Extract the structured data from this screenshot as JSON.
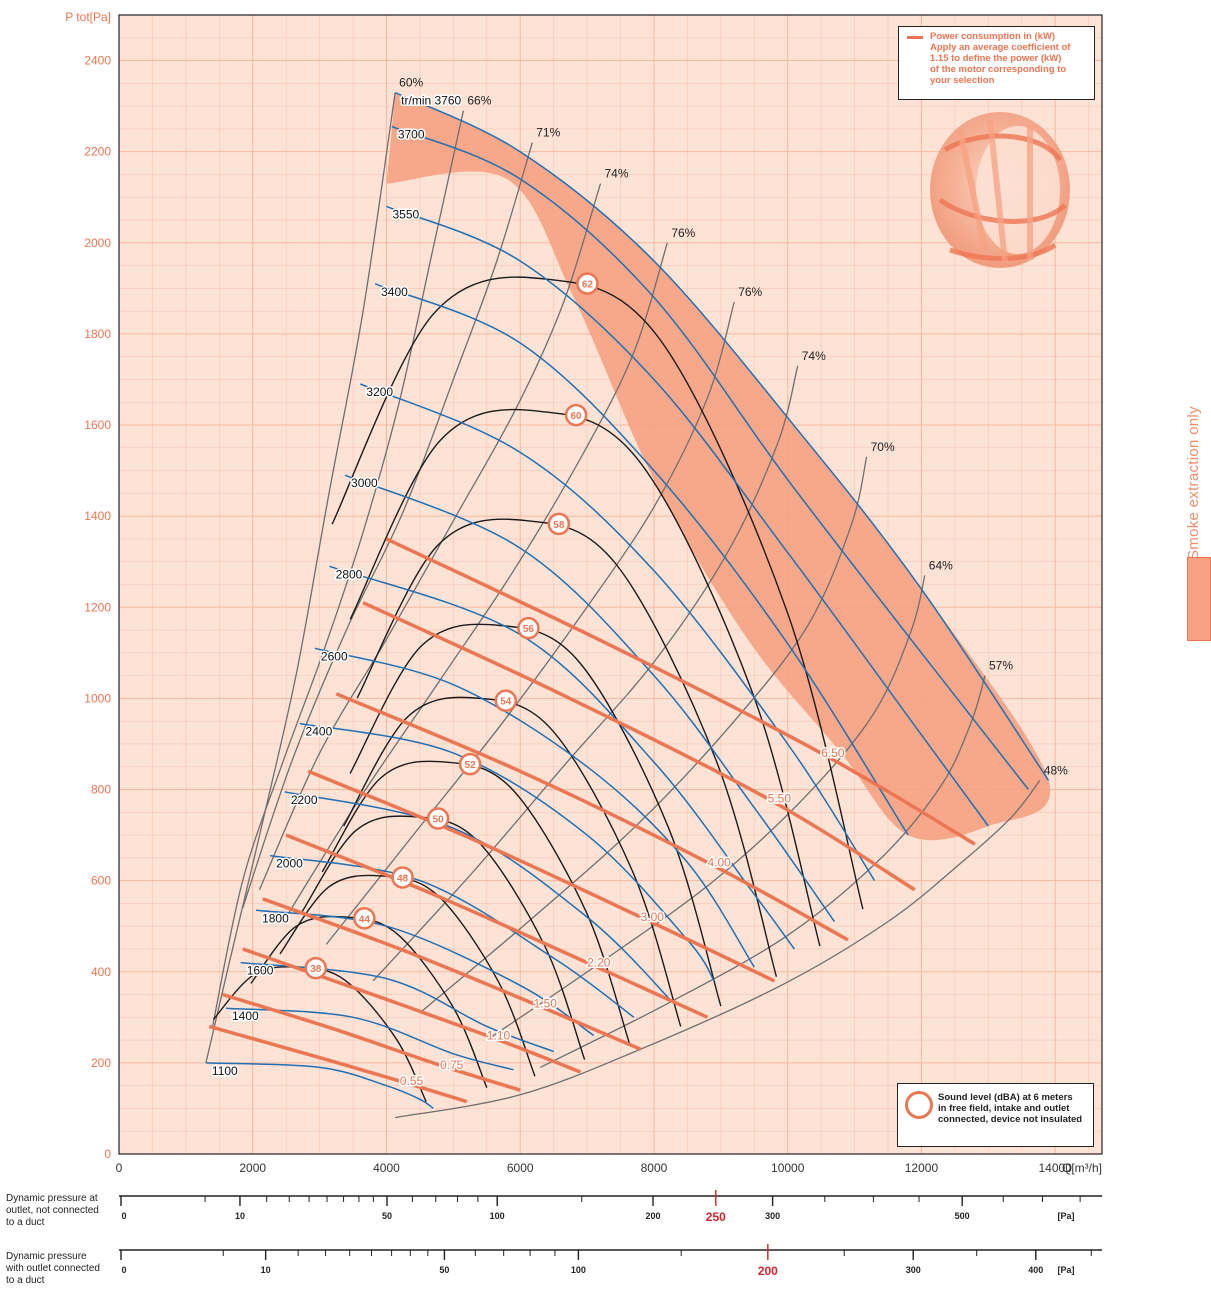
{
  "chart_data": {
    "type": "line",
    "ylabel": "P tot[Pa]",
    "xlabel": "Q[m³/h]",
    "xlim": [
      0,
      14700
    ],
    "ylim": [
      0,
      2500
    ],
    "x_ticks": [
      "0",
      "2000",
      "4000",
      "6000",
      "8000",
      "10000",
      "12000",
      "14000"
    ],
    "y_ticks": [
      "0",
      "200",
      "400",
      "600",
      "800",
      "1000",
      "1200",
      "1400",
      "1600",
      "1800",
      "2000",
      "2200",
      "2400"
    ],
    "grid": true,
    "speed_unit_label": "tr/min",
    "speed_curves": [
      {
        "rpm": "3760",
        "points": [
          [
            4130,
            2330
          ],
          [
            6000,
            2200
          ],
          [
            8000,
            1960
          ],
          [
            10200,
            1580
          ],
          [
            12000,
            1240
          ],
          [
            13900,
            820
          ]
        ]
      },
      {
        "rpm": "3700",
        "points": [
          [
            4080,
            2255
          ],
          [
            6000,
            2140
          ],
          [
            8000,
            1880
          ],
          [
            10000,
            1480
          ],
          [
            12000,
            1100
          ],
          [
            13600,
            800
          ]
        ]
      },
      {
        "rpm": "3550",
        "points": [
          [
            4000,
            2080
          ],
          [
            6000,
            1960
          ],
          [
            8000,
            1700
          ],
          [
            10000,
            1320
          ],
          [
            12000,
            920
          ],
          [
            13000,
            720
          ]
        ]
      },
      {
        "rpm": "3400",
        "points": [
          [
            3830,
            1910
          ],
          [
            6000,
            1780
          ],
          [
            8000,
            1500
          ],
          [
            10000,
            1120
          ],
          [
            11800,
            700
          ]
        ]
      },
      {
        "rpm": "3200",
        "points": [
          [
            3610,
            1690
          ],
          [
            6000,
            1540
          ],
          [
            8000,
            1280
          ],
          [
            10000,
            900
          ],
          [
            11300,
            600
          ]
        ]
      },
      {
        "rpm": "3000",
        "points": [
          [
            3380,
            1490
          ],
          [
            6000,
            1330
          ],
          [
            8000,
            1050
          ],
          [
            9500,
            760
          ],
          [
            10700,
            510
          ]
        ]
      },
      {
        "rpm": "2800",
        "points": [
          [
            3150,
            1290
          ],
          [
            6000,
            1140
          ],
          [
            8000,
            860
          ],
          [
            9500,
            570
          ],
          [
            10100,
            450
          ]
        ]
      },
      {
        "rpm": "2600",
        "points": [
          [
            2930,
            1110
          ],
          [
            5000,
            1030
          ],
          [
            7000,
            850
          ],
          [
            8500,
            640
          ],
          [
            9500,
            410
          ]
        ]
      },
      {
        "rpm": "2400",
        "points": [
          [
            2700,
            945
          ],
          [
            5000,
            880
          ],
          [
            7000,
            700
          ],
          [
            8500,
            470
          ],
          [
            8900,
            380
          ]
        ]
      },
      {
        "rpm": "2200",
        "points": [
          [
            2480,
            795
          ],
          [
            5000,
            715
          ],
          [
            7000,
            520
          ],
          [
            8300,
            330
          ]
        ]
      },
      {
        "rpm": "2000",
        "points": [
          [
            2260,
            655
          ],
          [
            4500,
            600
          ],
          [
            6500,
            430
          ],
          [
            7700,
            300
          ]
        ]
      },
      {
        "rpm": "1800",
        "points": [
          [
            2050,
            535
          ],
          [
            4000,
            500
          ],
          [
            6000,
            370
          ],
          [
            7100,
            260
          ]
        ]
      },
      {
        "rpm": "1600",
        "points": [
          [
            1820,
            420
          ],
          [
            4000,
            385
          ],
          [
            5500,
            280
          ],
          [
            6500,
            225
          ]
        ]
      },
      {
        "rpm": "1400",
        "points": [
          [
            1600,
            320
          ],
          [
            3500,
            300
          ],
          [
            5000,
            220
          ],
          [
            5900,
            185
          ]
        ]
      },
      {
        "rpm": "1100",
        "points": [
          [
            1300,
            200
          ],
          [
            3000,
            190
          ],
          [
            4000,
            150
          ],
          [
            4500,
            120
          ],
          [
            4700,
            100
          ]
        ]
      }
    ],
    "efficiency_curves": [
      {
        "label": "60%",
        "points": [
          [
            4130,
            2330
          ],
          [
            3650,
            1850
          ],
          [
            3140,
            1450
          ],
          [
            2660,
            1060
          ],
          [
            2150,
            730
          ],
          [
            1650,
            420
          ],
          [
            1300,
            200
          ]
        ]
      },
      {
        "label": "66%",
        "points": [
          [
            5150,
            2290
          ],
          [
            4700,
            1990
          ],
          [
            4190,
            1650
          ],
          [
            3640,
            1360
          ],
          [
            3050,
            1100
          ],
          [
            2450,
            860
          ],
          [
            1850,
            600
          ],
          [
            1400,
            280
          ]
        ]
      },
      {
        "label": "71%",
        "points": [
          [
            6180,
            2220
          ],
          [
            5650,
            1960
          ],
          [
            5050,
            1720
          ],
          [
            4250,
            1410
          ],
          [
            3400,
            1150
          ],
          [
            2580,
            860
          ],
          [
            1850,
            540
          ]
        ]
      },
      {
        "label": "74%",
        "points": [
          [
            7200,
            2130
          ],
          [
            6650,
            1870
          ],
          [
            5950,
            1640
          ],
          [
            5000,
            1390
          ],
          [
            4000,
            1130
          ],
          [
            3000,
            880
          ],
          [
            2100,
            580
          ]
        ]
      },
      {
        "label": "76%",
        "points": [
          [
            8200,
            2000
          ],
          [
            7700,
            1760
          ],
          [
            6950,
            1540
          ],
          [
            5900,
            1280
          ],
          [
            4800,
            1040
          ],
          [
            3600,
            780
          ],
          [
            2500,
            520
          ]
        ]
      },
      {
        "label": "76%",
        "points": [
          [
            9200,
            1870
          ],
          [
            8800,
            1660
          ],
          [
            8000,
            1420
          ],
          [
            6900,
            1180
          ],
          [
            5700,
            940
          ],
          [
            4400,
            700
          ],
          [
            3100,
            460
          ]
        ]
      },
      {
        "label": "74%",
        "points": [
          [
            10150,
            1730
          ],
          [
            9850,
            1560
          ],
          [
            9100,
            1320
          ],
          [
            8000,
            1080
          ],
          [
            6700,
            860
          ],
          [
            5300,
            620
          ],
          [
            3800,
            380
          ]
        ]
      },
      {
        "label": "70%",
        "points": [
          [
            11180,
            1530
          ],
          [
            10950,
            1380
          ],
          [
            10300,
            1160
          ],
          [
            9200,
            950
          ],
          [
            7800,
            730
          ],
          [
            6200,
            520
          ],
          [
            4500,
            310
          ]
        ]
      },
      {
        "label": "64%",
        "points": [
          [
            12050,
            1270
          ],
          [
            11850,
            1150
          ],
          [
            11300,
            970
          ],
          [
            10300,
            790
          ],
          [
            8900,
            600
          ],
          [
            7200,
            420
          ],
          [
            5500,
            250
          ]
        ]
      },
      {
        "label": "57%",
        "points": [
          [
            12950,
            1050
          ],
          [
            12750,
            950
          ],
          [
            12300,
            810
          ],
          [
            11400,
            650
          ],
          [
            10000,
            480
          ],
          [
            8200,
            330
          ],
          [
            6300,
            190
          ]
        ]
      },
      {
        "label": "48%",
        "points": [
          [
            13770,
            820
          ],
          [
            13350,
            740
          ],
          [
            12600,
            640
          ],
          [
            11500,
            510
          ],
          [
            9900,
            370
          ],
          [
            7800,
            230
          ],
          [
            6000,
            130
          ],
          [
            4130,
            80
          ]
        ]
      }
    ],
    "power_curves": [
      {
        "label": "0.55",
        "points": [
          [
            1350,
            280
          ],
          [
            2800,
            220
          ],
          [
            4200,
            160
          ],
          [
            5200,
            115
          ]
        ]
      },
      {
        "label": "0.75",
        "points": [
          [
            1550,
            350
          ],
          [
            3200,
            275
          ],
          [
            4800,
            195
          ],
          [
            6000,
            140
          ]
        ]
      },
      {
        "label": "1.10",
        "points": [
          [
            1850,
            450
          ],
          [
            3700,
            355
          ],
          [
            5500,
            260
          ],
          [
            6900,
            180
          ]
        ]
      },
      {
        "label": "1.50",
        "points": [
          [
            2150,
            560
          ],
          [
            4200,
            450
          ],
          [
            6200,
            330
          ],
          [
            7800,
            230
          ]
        ]
      },
      {
        "label": "2.20",
        "points": [
          [
            2500,
            700
          ],
          [
            4700,
            570
          ],
          [
            7000,
            420
          ],
          [
            8800,
            300
          ]
        ]
      },
      {
        "label": "3.00",
        "points": [
          [
            2830,
            840
          ],
          [
            5300,
            690
          ],
          [
            7800,
            520
          ],
          [
            9800,
            380
          ]
        ]
      },
      {
        "label": "4.00",
        "points": [
          [
            3250,
            1010
          ],
          [
            6000,
            840
          ],
          [
            8800,
            640
          ],
          [
            10900,
            470
          ]
        ]
      },
      {
        "label": "5.50",
        "points": [
          [
            3650,
            1210
          ],
          [
            6600,
            1010
          ],
          [
            9700,
            780
          ],
          [
            11900,
            580
          ]
        ]
      },
      {
        "label": "6.50",
        "points": [
          [
            4000,
            1350
          ],
          [
            7300,
            1120
          ],
          [
            10500,
            880
          ],
          [
            12800,
            680
          ]
        ]
      }
    ],
    "sound_curves": [
      {
        "label": "38",
        "apex": [
          2700,
          410
        ]
      },
      {
        "label": "44",
        "apex": [
          3400,
          520
        ]
      },
      {
        "label": "48",
        "apex": [
          3950,
          610
        ]
      },
      {
        "label": "50",
        "apex": [
          4450,
          740
        ]
      },
      {
        "label": "52",
        "apex": [
          4900,
          860
        ]
      },
      {
        "label": "54",
        "apex": [
          5400,
          1000
        ]
      },
      {
        "label": "56",
        "apex": [
          5700,
          1160
        ]
      },
      {
        "label": "58",
        "apex": [
          6100,
          1390
        ]
      },
      {
        "label": "60",
        "apex": [
          6300,
          1630
        ]
      },
      {
        "label": "62",
        "apex": [
          6400,
          1920
        ]
      }
    ],
    "smoke_band": [
      [
        4130,
        2330
      ],
      [
        6000,
        2200
      ],
      [
        8000,
        1960
      ],
      [
        10200,
        1580
      ],
      [
        12000,
        1240
      ],
      [
        13900,
        820
      ],
      [
        13000,
        720
      ],
      [
        11800,
        700
      ],
      [
        10800,
        880
      ],
      [
        9400,
        1130
      ],
      [
        8000,
        1480
      ],
      [
        6800,
        1880
      ],
      [
        5800,
        2140
      ],
      [
        4000,
        2130
      ]
    ],
    "dynamic_pressure_scales": [
      {
        "title": [
          "Dynamic pressure at",
          "outlet, not connected",
          "to a duct"
        ],
        "ticks": [
          "0",
          "10",
          "50",
          "100",
          "200",
          "250",
          "300",
          "500"
        ],
        "highlight": "250",
        "unit": "[Pa]"
      },
      {
        "title": [
          "Dynamic pressure",
          "with outlet connected",
          "to a duct"
        ],
        "ticks": [
          "0",
          "10",
          "50",
          "100",
          "200",
          "300",
          "400"
        ],
        "highlight": "200",
        "unit": "[Pa]"
      }
    ]
  },
  "legend_power": [
    "Power consumption in (kW)",
    "Apply an average coefficient of",
    "1.15 to define the power (kW)",
    "of the motor corresponding to",
    "your selection"
  ],
  "legend_sound": [
    "Sound level (dBA) at 6 meters",
    "in free field, intake and outlet",
    "connected, device not insulated"
  ],
  "side_label": "Smoke extraction only",
  "colors": {
    "background": "#fde3d6",
    "grid": "#f5b49a",
    "speed": "#1f6fb5",
    "power": "#ec7552",
    "band": "#f6a182",
    "efficiency": "#6e6e6e",
    "sound": "#1a1a1a"
  }
}
